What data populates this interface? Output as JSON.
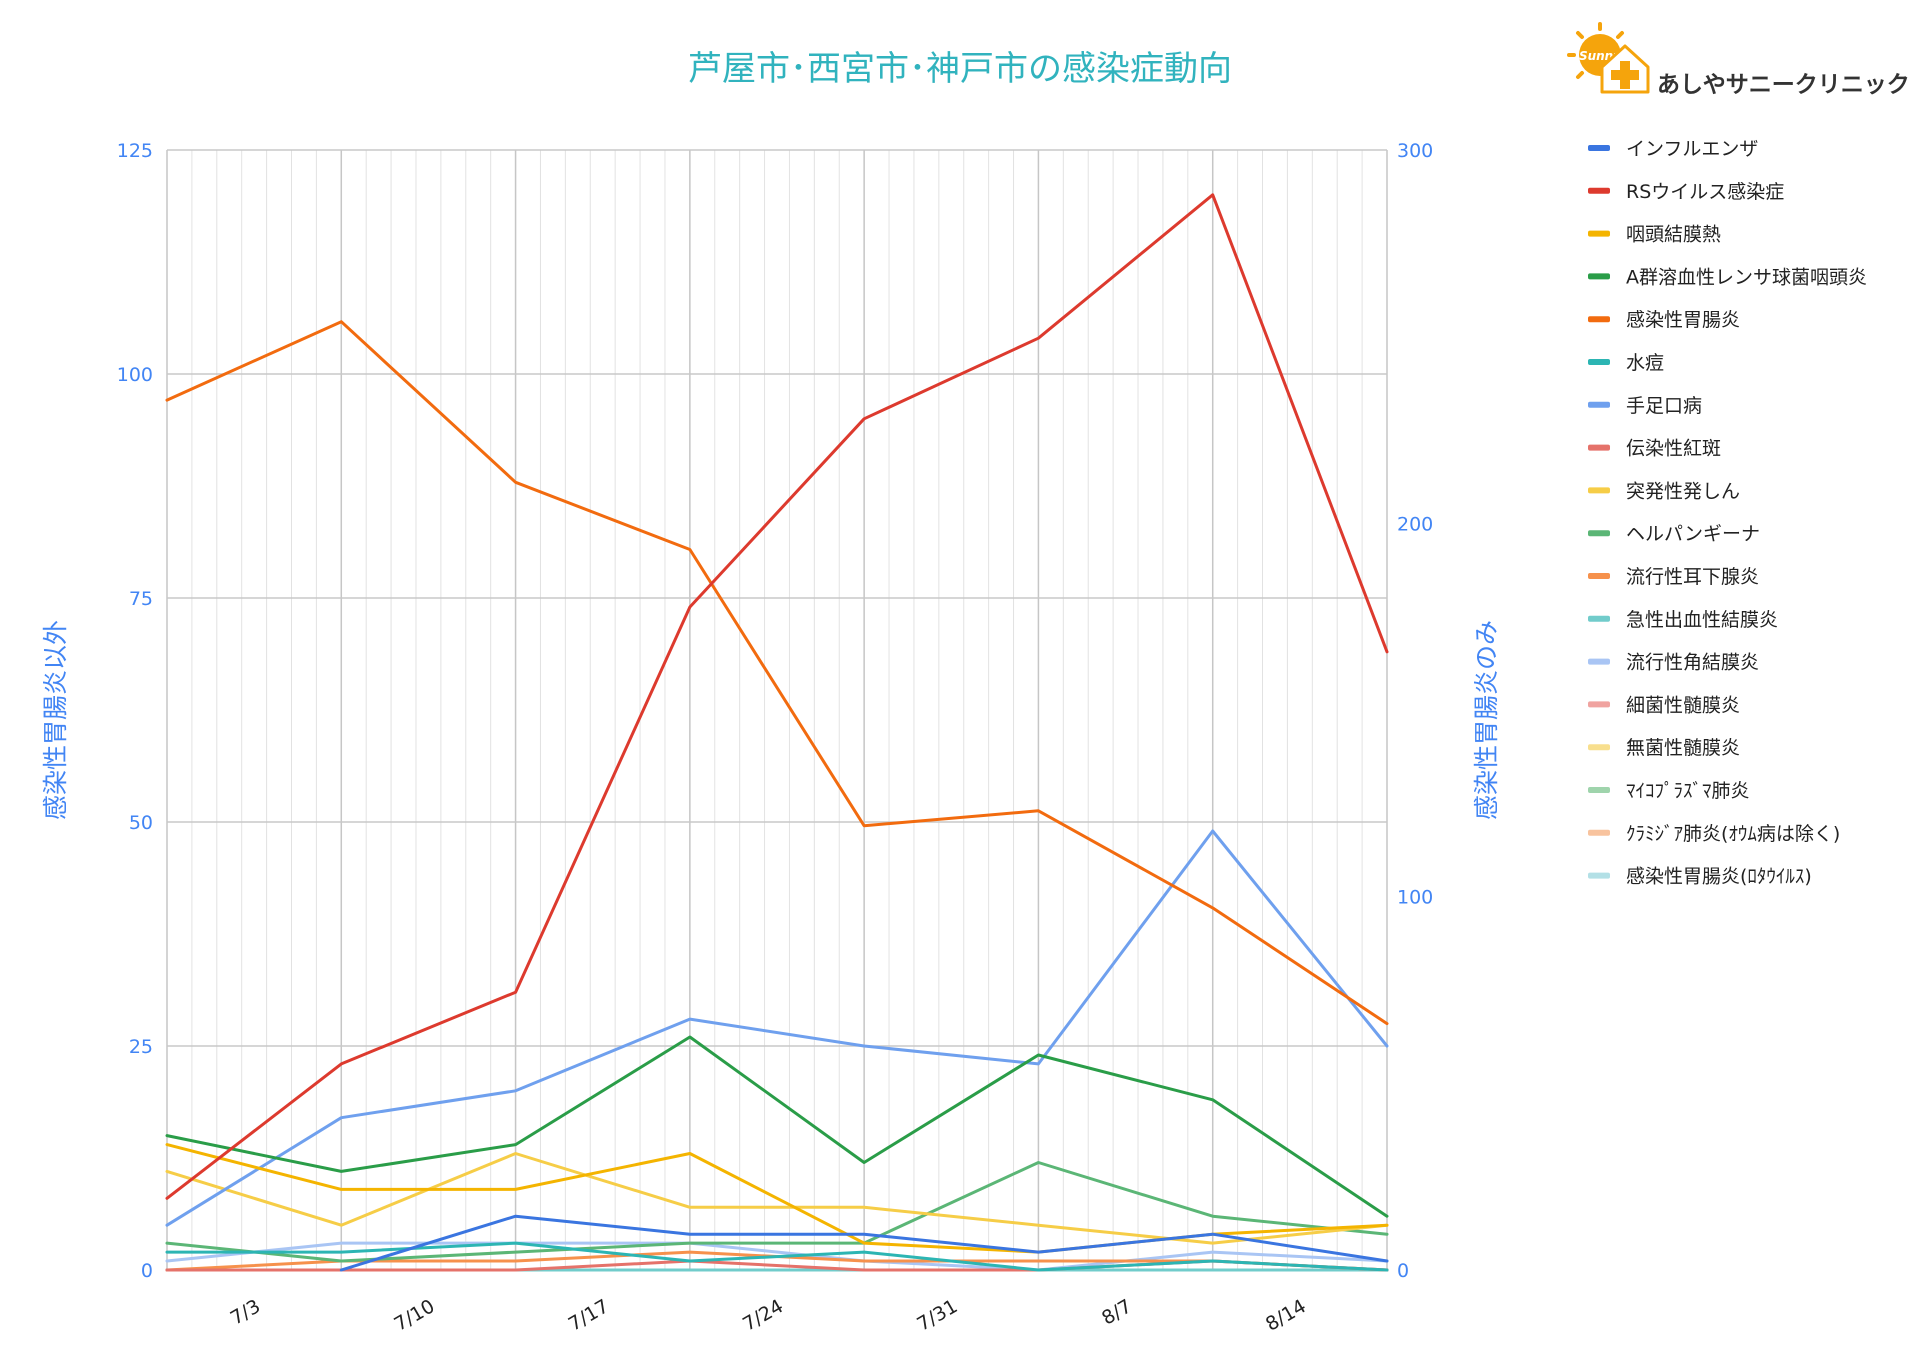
{
  "clinic": {
    "name": "あしやサニークリニック",
    "logo_word": "Sunny"
  },
  "chart_data": {
    "type": "line",
    "title": "芦屋市･西宮市･神戸市の感染症動向",
    "ylabel_left": "感染性胃腸炎以外",
    "ylabel_right": "感染性胃腸炎のみ",
    "ylim_left": [
      0,
      125
    ],
    "ylim_right": [
      0,
      300
    ],
    "yticks_left": [
      "0",
      "25",
      "50",
      "75",
      "100",
      "125"
    ],
    "yticks_right": [
      "0",
      "100",
      "200",
      "300"
    ],
    "x": [
      "6/30",
      "7/7",
      "7/14",
      "7/21",
      "7/28",
      "8/4",
      "8/11",
      "8/18"
    ],
    "xticks": [
      "7/3",
      "7/10",
      "7/17",
      "7/24",
      "7/31",
      "8/7",
      "8/14"
    ],
    "grid": true,
    "legend_position": "right",
    "series": [
      {
        "name": "インフルエンザ",
        "color": "#3a75e0",
        "axis": "left",
        "values": [
          null,
          0,
          6,
          4,
          4,
          2,
          4,
          1
        ]
      },
      {
        "name": "RSウイルス感染症",
        "color": "#dd3a2e",
        "axis": "left",
        "values": [
          8,
          23,
          31,
          74,
          95,
          104,
          120,
          69
        ]
      },
      {
        "name": "咽頭結膜熱",
        "color": "#f4b400",
        "axis": "left",
        "values": [
          14,
          9,
          9,
          13,
          3,
          2,
          4,
          5
        ]
      },
      {
        "name": "A群溶血性レンサ球菌咽頭炎",
        "color": "#2a9d48",
        "axis": "left",
        "values": [
          15,
          11,
          14,
          26,
          12,
          24,
          19,
          6
        ]
      },
      {
        "name": "感染性胃腸炎",
        "color": "#f26b0f",
        "axis": "right",
        "values": [
          233,
          254,
          211,
          193,
          119,
          123,
          97,
          66
        ]
      },
      {
        "name": "水痘",
        "color": "#2cb5b3",
        "axis": "left",
        "values": [
          2,
          2,
          3,
          1,
          2,
          0,
          1,
          0
        ]
      },
      {
        "name": "手足口病",
        "color": "#6fa0ee",
        "axis": "left",
        "values": [
          5,
          17,
          20,
          28,
          25,
          23,
          49,
          25
        ]
      },
      {
        "name": "伝染性紅斑",
        "color": "#e5726a",
        "axis": "left",
        "values": [
          0,
          0,
          0,
          1,
          0,
          0,
          1,
          0
        ]
      },
      {
        "name": "突発性発しん",
        "color": "#f6cd47",
        "axis": "left",
        "values": [
          11,
          5,
          13,
          7,
          7,
          5,
          3,
          5
        ]
      },
      {
        "name": "ヘルパンギーナ",
        "color": "#5bb676",
        "axis": "left",
        "values": [
          3,
          1,
          2,
          3,
          3,
          12,
          6,
          4
        ]
      },
      {
        "name": "流行性耳下腺炎",
        "color": "#f6914c",
        "axis": "left",
        "values": [
          0,
          1,
          1,
          2,
          1,
          1,
          1,
          0
        ]
      },
      {
        "name": "急性出血性結膜炎",
        "color": "#71cccb",
        "axis": "left",
        "values": [
          0,
          0,
          0,
          0,
          0,
          0,
          0,
          0
        ]
      },
      {
        "name": "流行性角結膜炎",
        "color": "#a9c5f4",
        "axis": "left",
        "values": [
          1,
          3,
          3,
          3,
          1,
          0,
          2,
          1
        ]
      },
      {
        "name": "細菌性髄膜炎",
        "color": "#f0a3a0",
        "axis": "left",
        "values": [
          0,
          0,
          0,
          0,
          0,
          0,
          0,
          0
        ]
      },
      {
        "name": "無菌性髄膜炎",
        "color": "#f8df8e",
        "axis": "left",
        "values": [
          0,
          0,
          0,
          0,
          0,
          0,
          0,
          0
        ]
      },
      {
        "name": "ﾏｲｺﾌﾟﾗｽﾞﾏ肺炎",
        "color": "#9fd4ac",
        "axis": "left",
        "values": [
          0,
          0,
          0,
          0,
          0,
          0,
          0,
          0
        ]
      },
      {
        "name": "ｸﾗﾐｼﾞｱ肺炎(ｵｳﾑ病は除く)",
        "color": "#f8c39e",
        "axis": "left",
        "values": [
          0,
          0,
          0,
          0,
          0,
          0,
          0,
          0
        ]
      },
      {
        "name": "感染性胃腸炎(ﾛﾀｳｲﾙｽ)",
        "color": "#b3e0e6",
        "axis": "left",
        "values": [
          0,
          0,
          0,
          0,
          0,
          0,
          0,
          0
        ]
      }
    ]
  }
}
